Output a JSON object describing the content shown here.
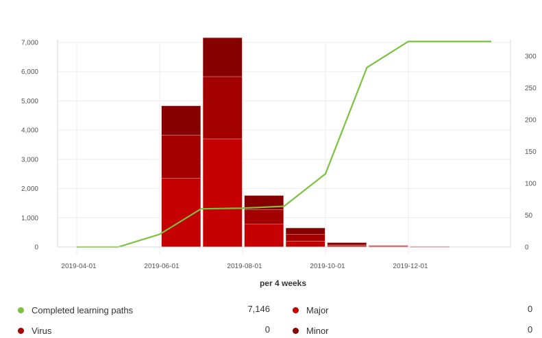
{
  "chart_data": {
    "type": "bar",
    "xlabel": "per 4 weeks",
    "x_tick_labels": [
      "2019-04-01",
      "2019-06-01",
      "2019-08-01",
      "2019-10-01",
      "2019-12-01"
    ],
    "categories": [
      "2019-04-01",
      "2019-04-29",
      "2019-05-27",
      "2019-06-24",
      "2019-07-22",
      "2019-08-19",
      "2019-09-16",
      "2019-10-14",
      "2019-11-11",
      "2019-12-09",
      "2020-01-06"
    ],
    "ylim_left": [
      0,
      7000
    ],
    "y_ticks_left": [
      "0",
      "1,000",
      "2,000",
      "3,000",
      "4,000",
      "5,000",
      "6,000",
      "7,000"
    ],
    "ylim_right": [
      0,
      300
    ],
    "y_ticks_right": [
      "0",
      "50",
      "100",
      "150",
      "200",
      "250",
      "300"
    ],
    "grid": true,
    "series": [
      {
        "name": "Major",
        "type": "bar",
        "axis": "left",
        "color": "#c40000",
        "values": [
          0,
          0,
          2350,
          3700,
          780,
          200,
          30,
          10,
          5,
          0,
          0
        ]
      },
      {
        "name": "Minor",
        "type": "bar",
        "axis": "left",
        "color": "#a30000",
        "values": [
          0,
          0,
          1480,
          2130,
          500,
          230,
          40,
          20,
          10,
          0,
          0
        ]
      },
      {
        "name": "",
        "type": "bar",
        "axis": "left",
        "color": "#860000",
        "values": [
          0,
          0,
          1000,
          1330,
          480,
          220,
          80,
          20,
          5,
          0,
          0
        ]
      },
      {
        "name": "Completed learning paths",
        "type": "line",
        "axis": "right",
        "color": "#7bc23c",
        "values": [
          0,
          0,
          20,
          60,
          61,
          64,
          115,
          282,
          323,
          323,
          323
        ]
      }
    ]
  },
  "legend": [
    {
      "label": "Completed learning paths",
      "value": "7,146",
      "color": "#7bc23c"
    },
    {
      "label": "Virus",
      "value": "0",
      "color": "#a80000"
    },
    {
      "label": "Major",
      "value": "0",
      "color": "#c40000"
    },
    {
      "label": "Minor",
      "value": "0",
      "color": "#a30000"
    }
  ]
}
